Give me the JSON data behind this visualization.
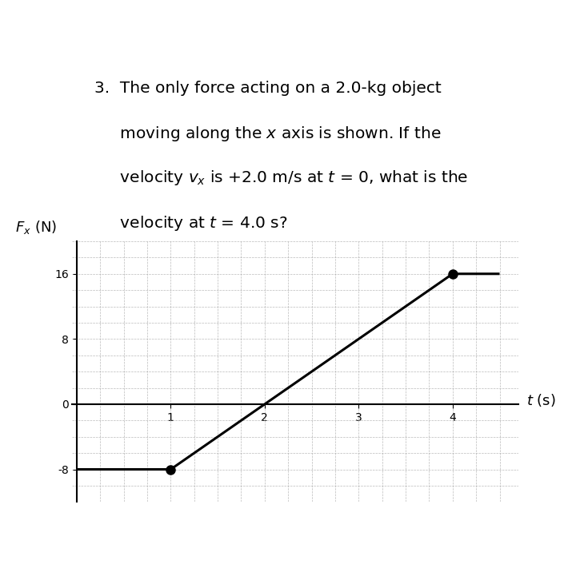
{
  "question_text_lines": [
    "3.  The only force acting on a 2.0-kg object",
    "     moving along the $x$ axis is shown. If the",
    "     velocity $v_x$ is +2.0 m/s at $t$ = 0, what is the",
    "     velocity at $t$ = 4.0 s?"
  ],
  "ylabel": "$F_x$ (N)",
  "xlabel": "$t$ (s)",
  "line_x": [
    0,
    1,
    4,
    4.5
  ],
  "line_y": [
    -8,
    -8,
    16,
    16
  ],
  "dot_points_x": [
    1,
    4
  ],
  "dot_points_y": [
    -8,
    16
  ],
  "xlim": [
    -0.05,
    4.7
  ],
  "ylim": [
    -12,
    20
  ],
  "yticks": [
    -8,
    0,
    8,
    16
  ],
  "xticks": [
    1,
    2,
    3,
    4
  ],
  "grid_color": "#aaaaaa",
  "line_color": "#000000",
  "dot_color": "#000000",
  "bg_color": "#ffffff",
  "axis_label_fontsize": 13,
  "tick_fontsize": 12,
  "dot_size": 8,
  "line_width": 2.2
}
